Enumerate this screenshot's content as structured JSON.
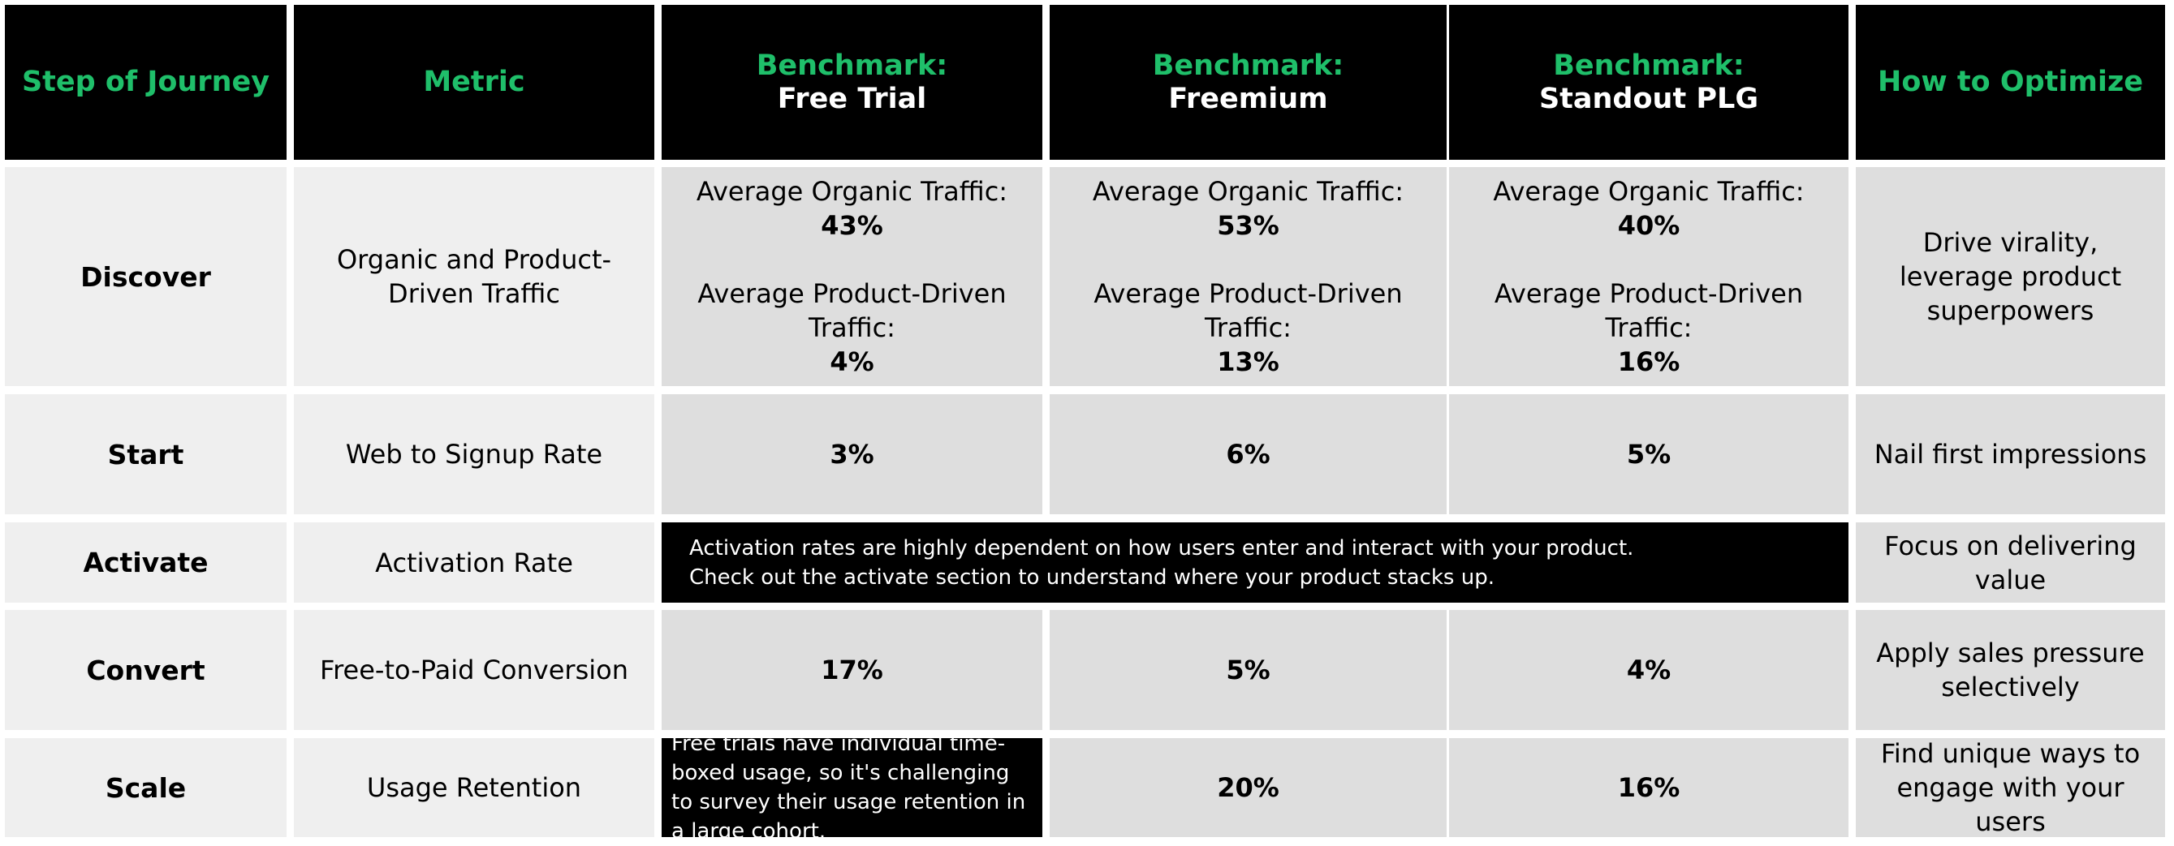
{
  "headers": {
    "step": "Step of Journey",
    "metric": "Metric",
    "free_trial": {
      "line1": "Benchmark:",
      "line2": "Free Trial"
    },
    "freemium": {
      "line1": "Benchmark:",
      "line2": "Freemium"
    },
    "standout": {
      "line1": "Benchmark:",
      "line2": "Standout PLG"
    },
    "optimize": "How to Optimize"
  },
  "rows": {
    "discover": {
      "step": "Discover",
      "metric": "Organic and Product-Driven Traffic",
      "organic_label": "Average Organic Traffic:",
      "product_label": "Average Product-Driven Traffic:",
      "free_trial": {
        "organic": "43%",
        "product": "4%"
      },
      "freemium": {
        "organic": "53%",
        "product": "13%"
      },
      "standout": {
        "organic": "40%",
        "product": "16%"
      },
      "optimize": "Drive virality, leverage product superpowers"
    },
    "start": {
      "step": "Start",
      "metric": "Web to Signup Rate",
      "free_trial": "3%",
      "freemium": "6%",
      "standout": "5%",
      "optimize": "Nail first impressions"
    },
    "activate": {
      "step": "Activate",
      "metric": "Activation Rate",
      "note_line1": "Activation rates are highly dependent on how users enter and interact with your product.",
      "note_line2": "Check out the activate section to understand where your product stacks up.",
      "optimize": "Focus on delivering value"
    },
    "convert": {
      "step": "Convert",
      "metric": "Free-to-Paid Conversion",
      "free_trial": "17%",
      "freemium": "5%",
      "standout": "4%",
      "optimize": "Apply sales pressure selectively"
    },
    "scale": {
      "step": "Scale",
      "metric": "Usage Retention",
      "free_trial_note": "Free trials have individual time-boxed usage, so it's challenging to survey their usage retention in a large cohort.",
      "freemium": "20%",
      "standout": "16%",
      "optimize": "Find unique ways to engage with your users"
    }
  },
  "colors": {
    "accent_green": "#1fbf6a",
    "header_bg": "#000000",
    "label_cell_bg": "#efefef",
    "data_cell_bg": "#dedede"
  }
}
